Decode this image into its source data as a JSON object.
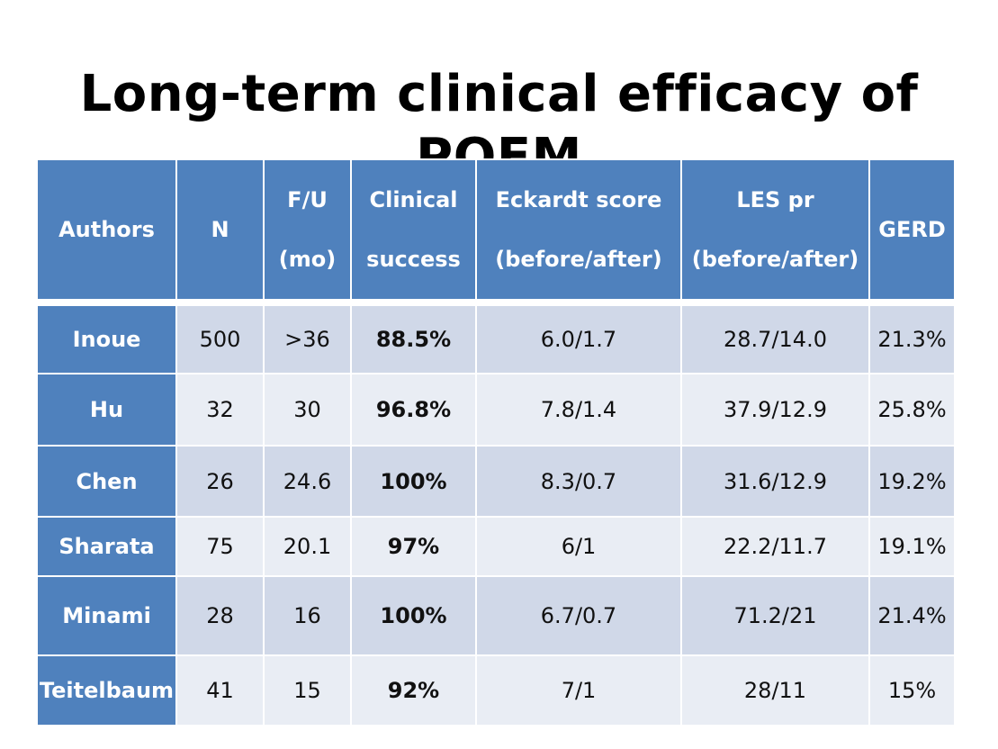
{
  "title": "Long-term clinical efficacy of POEM",
  "table": {
    "headers": [
      {
        "line1": "Authors",
        "line2": ""
      },
      {
        "line1": "N",
        "line2": ""
      },
      {
        "line1": "F/U",
        "line2": "(mo)"
      },
      {
        "line1": "Clinical",
        "line2": "success"
      },
      {
        "line1": "Eckardt score",
        "line2": "(before/after)"
      },
      {
        "line1": "LES pr",
        "line2": "(before/after)"
      },
      {
        "line1": "GERD",
        "line2": ""
      }
    ],
    "rows": [
      {
        "author": "Inoue",
        "n": "500",
        "fu": ">36",
        "success": "88.5%",
        "eckardt": "6.0/1.7",
        "les": "28.7/14.0",
        "gerd": "21.3%"
      },
      {
        "author": "Hu",
        "n": "32",
        "fu": "30",
        "success": "96.8%",
        "eckardt": "7.8/1.4",
        "les": "37.9/12.9",
        "gerd": "25.8%"
      },
      {
        "author": "Chen",
        "n": "26",
        "fu": "24.6",
        "success": "100%",
        "eckardt": "8.3/0.7",
        "les": "31.6/12.9",
        "gerd": "19.2%"
      },
      {
        "author": "Sharata",
        "n": "75",
        "fu": "20.1",
        "success": "97%",
        "eckardt": "6/1",
        "les": "22.2/11.7",
        "gerd": "19.1%"
      },
      {
        "author": "Minami",
        "n": "28",
        "fu": "16",
        "success": "100%",
        "eckardt": "6.7/0.7",
        "les": "71.2/21",
        "gerd": "21.4%"
      },
      {
        "author": "Teitelbaum",
        "n": "41",
        "fu": "15",
        "success": "92%",
        "eckardt": "7/1",
        "les": "28/11",
        "gerd": "15%"
      }
    ]
  },
  "colors": {
    "header_bg": "#4f81bd",
    "row_dark": "#d0d8e8",
    "row_light": "#e9edf4",
    "success_text": "#6a14d6"
  }
}
